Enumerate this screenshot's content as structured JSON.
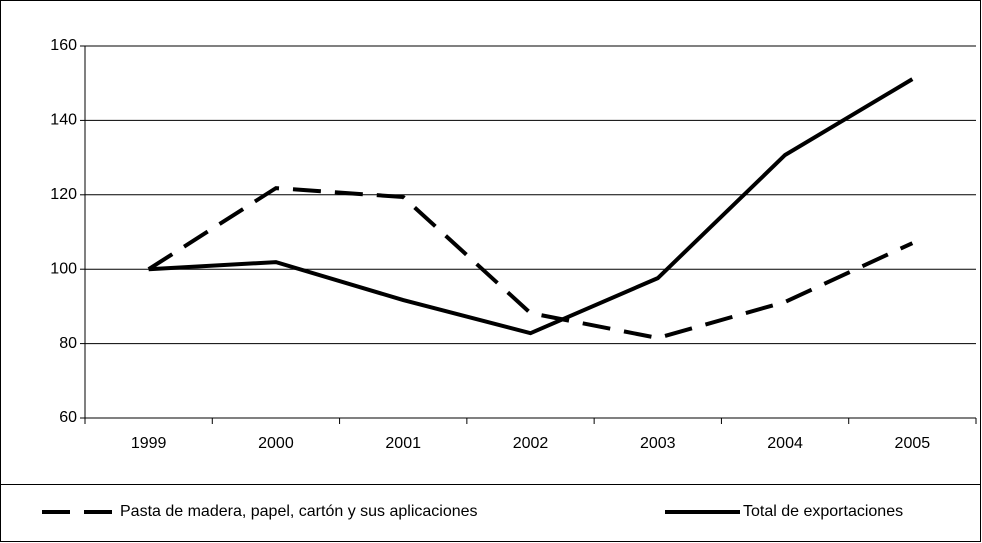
{
  "chart_data": {
    "type": "line",
    "categories": [
      "1999",
      "2000",
      "2001",
      "2002",
      "2003",
      "2004",
      "2005"
    ],
    "series": [
      {
        "name": "Pasta de madera, papel, cartón y sus aplicaciones",
        "color": "#000000",
        "dash": true,
        "values": [
          100,
          121.8,
          119.4,
          88.2,
          81.5,
          91.2,
          107
        ]
      },
      {
        "name": "Total de exportaciones",
        "color": "#000000",
        "dash": false,
        "values": [
          100,
          101.9,
          91.7,
          82.8,
          97.6,
          130.7,
          151.1
        ]
      }
    ],
    "ylim": [
      60,
      160
    ],
    "yticks": [
      60,
      80,
      100,
      120,
      140,
      160
    ],
    "grid": true
  }
}
